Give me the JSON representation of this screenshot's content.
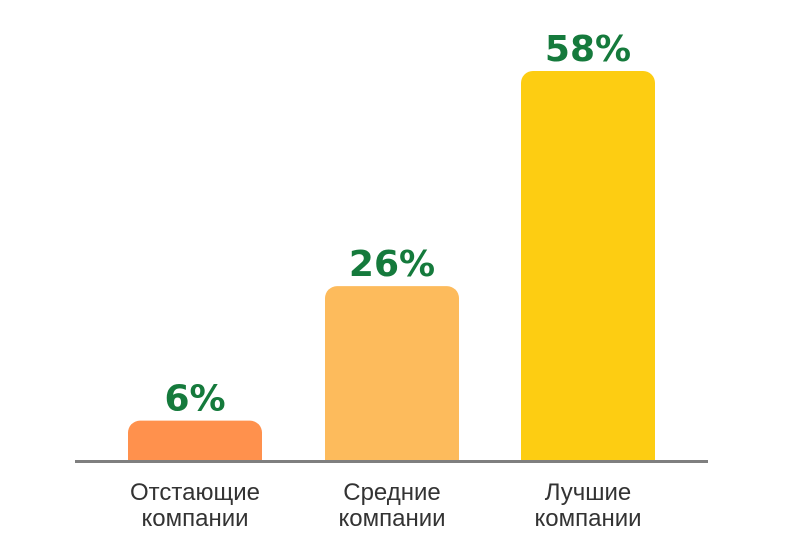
{
  "chart_data": {
    "type": "bar",
    "categories": [
      [
        "Отстающие",
        "компании"
      ],
      [
        "Средние",
        "компании"
      ],
      [
        "Лучшие",
        "компании"
      ]
    ],
    "values": [
      6,
      26,
      58
    ],
    "value_labels": [
      "6%",
      "26%",
      "58%"
    ],
    "bar_colors": [
      "#FF914D",
      "#FDBB5C",
      "#FDCD12"
    ],
    "value_label_color": "#157A3C",
    "baseline_color": "#7F7F7F",
    "title": "",
    "xlabel": "",
    "ylabel": "",
    "ylim": [
      0,
      58
    ],
    "grid": false,
    "legend": "none"
  }
}
